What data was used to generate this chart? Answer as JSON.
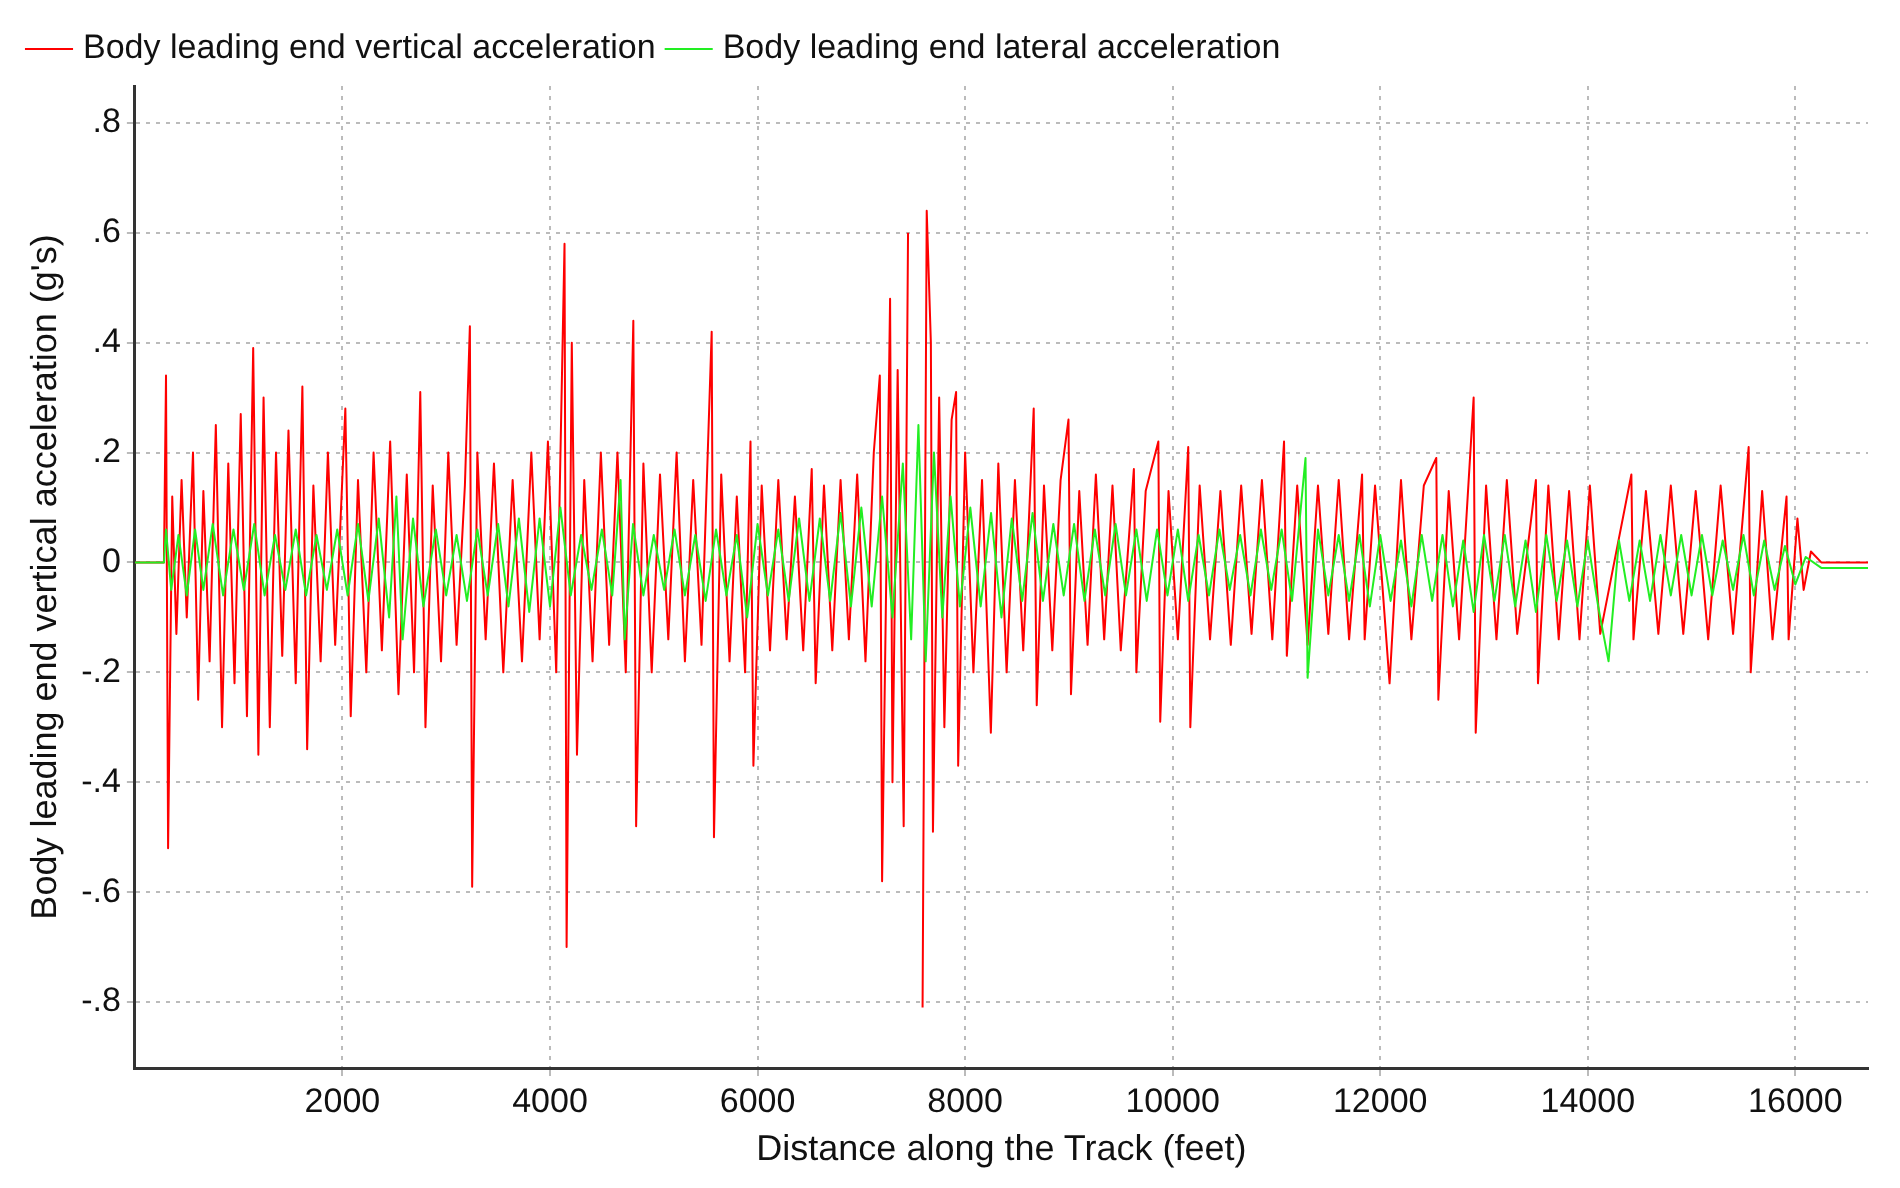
{
  "chart_data": {
    "type": "line",
    "xlabel": "Distance along the Track (feet)",
    "ylabel": "Body leading end vertical acceleration (g's)",
    "xlim": [
      0,
      16700
    ],
    "xticks": [
      2000,
      4000,
      6000,
      8000,
      10000,
      12000,
      14000,
      16000
    ],
    "ylim": [
      -0.92,
      0.867
    ],
    "yticks": [
      {
        "value": 0.8,
        "label": ".8"
      },
      {
        "value": 0.6,
        "label": ".6"
      },
      {
        "value": 0.4,
        "label": ".4"
      },
      {
        "value": 0.2,
        "label": ".2"
      },
      0,
      {
        "value": -0.2,
        "label": "-.2"
      },
      {
        "value": -0.4,
        "label": "-.4"
      },
      {
        "value": -0.6,
        "label": "-.6"
      },
      {
        "value": -0.8,
        "label": "-.8"
      }
    ],
    "grid": true,
    "legend": "top left",
    "marker": "none",
    "line_style": "solid",
    "series": [
      {
        "name": "Body leading end vertical acceleration",
        "color": "#ff0000",
        "x": [
          0,
          280,
          300,
          320,
          360,
          400,
          450,
          500,
          560,
          610,
          660,
          720,
          780,
          840,
          900,
          960,
          1020,
          1080,
          1140,
          1190,
          1240,
          1300,
          1360,
          1420,
          1480,
          1550,
          1614,
          1660,
          1720,
          1790,
          1860,
          1930,
          2028,
          2080,
          2150,
          2230,
          2300,
          2380,
          2460,
          2540,
          2620,
          2690,
          2750,
          2800,
          2870,
          2950,
          3020,
          3100,
          3180,
          3228,
          3250,
          3300,
          3380,
          3460,
          3550,
          3640,
          3730,
          3820,
          3900,
          3980,
          4060,
          4140,
          4160,
          4210,
          4260,
          4330,
          4410,
          4490,
          4570,
          4650,
          4730,
          4803,
          4830,
          4900,
          4980,
          5060,
          5140,
          5220,
          5300,
          5380,
          5460,
          5558,
          5580,
          5650,
          5730,
          5800,
          5880,
          5932,
          5960,
          6040,
          6120,
          6200,
          6280,
          6360,
          6440,
          6522,
          6560,
          6640,
          6720,
          6800,
          6880,
          6960,
          7040,
          7120,
          7178,
          7200,
          7277,
          7300,
          7350,
          7408,
          7450,
          7506,
          7530,
          7572,
          7590,
          7630,
          7670,
          7690,
          7750,
          7800,
          7870,
          7913,
          7933,
          8000,
          8080,
          8163,
          8248,
          8320,
          8400,
          8480,
          8560,
          8661,
          8690,
          8760,
          8840,
          8920,
          8996,
          9020,
          9100,
          9180,
          9260,
          9340,
          9420,
          9500,
          9626,
          9650,
          9740,
          9862,
          9880,
          9960,
          10050,
          10150,
          10170,
          10260,
          10360,
          10460,
          10560,
          10660,
          10760,
          10860,
          10960,
          11073,
          11100,
          11200,
          11300,
          11400,
          11500,
          11600,
          11700,
          11825,
          11850,
          11950,
          12090,
          12200,
          12300,
          12420,
          12540,
          12560,
          12660,
          12760,
          12900,
          12920,
          13020,
          13120,
          13220,
          13320,
          13500,
          13520,
          13620,
          13720,
          13820,
          13920,
          14020,
          14120,
          14420,
          14440,
          14560,
          14680,
          14800,
          14920,
          15040,
          15160,
          15280,
          15400,
          15550,
          15570,
          15680,
          15780,
          15915,
          15935,
          16020,
          16080,
          16150,
          16250,
          16700
        ],
        "values": [
          0,
          0,
          0.34,
          -0.52,
          0.12,
          -0.13,
          0.15,
          -0.1,
          0.2,
          -0.25,
          0.13,
          -0.18,
          0.25,
          -0.3,
          0.18,
          -0.22,
          0.27,
          -0.28,
          0.39,
          -0.35,
          0.3,
          -0.3,
          0.2,
          -0.17,
          0.24,
          -0.22,
          0.32,
          -0.34,
          0.14,
          -0.18,
          0.2,
          -0.15,
          0.28,
          -0.28,
          0.15,
          -0.2,
          0.2,
          -0.16,
          0.22,
          -0.24,
          0.16,
          -0.2,
          0.31,
          -0.3,
          0.14,
          -0.18,
          0.2,
          -0.15,
          0.14,
          0.43,
          -0.59,
          0.2,
          -0.14,
          0.18,
          -0.2,
          0.15,
          -0.18,
          0.2,
          -0.14,
          0.22,
          -0.2,
          0.58,
          -0.7,
          0.4,
          -0.35,
          0.15,
          -0.18,
          0.2,
          -0.15,
          0.2,
          -0.2,
          0.44,
          -0.48,
          0.18,
          -0.2,
          0.16,
          -0.14,
          0.2,
          -0.18,
          0.15,
          -0.15,
          0.42,
          -0.5,
          0.16,
          -0.18,
          0.12,
          -0.2,
          0.22,
          -0.37,
          0.14,
          -0.16,
          0.15,
          -0.14,
          0.12,
          -0.16,
          0.17,
          -0.22,
          0.14,
          -0.16,
          0.15,
          -0.14,
          0.16,
          -0.18,
          0.2,
          0.34,
          -0.58,
          0.48,
          -0.4,
          0.35,
          -0.48,
          0.6,
          null,
          null,
          null,
          -0.81,
          0.64,
          0.4,
          -0.49,
          0.3,
          -0.3,
          0.26,
          0.31,
          -0.37,
          0.2,
          -0.2,
          0.15,
          -0.31,
          0.18,
          -0.2,
          0.15,
          -0.16,
          0.28,
          -0.26,
          0.14,
          -0.16,
          0.15,
          0.26,
          -0.24,
          0.13,
          -0.15,
          0.16,
          -0.14,
          0.14,
          -0.16,
          0.17,
          -0.2,
          0.13,
          0.22,
          -0.29,
          0.13,
          -0.14,
          0.21,
          -0.3,
          0.14,
          -0.14,
          0.13,
          -0.15,
          0.14,
          -0.13,
          0.15,
          -0.14,
          0.22,
          -0.17,
          0.14,
          -0.15,
          0.14,
          -0.13,
          0.15,
          -0.14,
          0.16,
          -0.14,
          0.14,
          -0.22,
          0.15,
          -0.14,
          0.14,
          0.19,
          -0.25,
          0.13,
          -0.14,
          0.3,
          -0.31,
          0.14,
          -0.14,
          0.15,
          -0.13,
          0.15,
          -0.22,
          0.14,
          -0.14,
          0.13,
          -0.14,
          0.14,
          -0.13,
          0.16,
          -0.14,
          0.13,
          -0.13,
          0.14,
          -0.13,
          0.13,
          -0.14,
          0.14,
          -0.13,
          0.21,
          -0.2,
          0.13,
          -0.14,
          0.12,
          -0.14,
          0.08,
          -0.05,
          0.02,
          0,
          0
        ]
      },
      {
        "name": "Body leading end lateral acceleration",
        "color": "#22ee22",
        "x": [
          0,
          280,
          300,
          350,
          420,
          500,
          580,
          660,
          750,
          850,
          950,
          1050,
          1150,
          1250,
          1350,
          1450,
          1550,
          1650,
          1750,
          1850,
          1950,
          2050,
          2150,
          2250,
          2350,
          2450,
          2520,
          2580,
          2680,
          2780,
          2900,
          3000,
          3100,
          3200,
          3300,
          3400,
          3500,
          3600,
          3700,
          3800,
          3900,
          4000,
          4100,
          4200,
          4300,
          4400,
          4500,
          4600,
          4680,
          4720,
          4800,
          4900,
          5000,
          5100,
          5200,
          5300,
          5400,
          5500,
          5600,
          5700,
          5800,
          5900,
          6000,
          6100,
          6200,
          6300,
          6400,
          6500,
          6600,
          6700,
          6800,
          6900,
          7000,
          7100,
          7200,
          7300,
          7400,
          7480,
          7550,
          7620,
          7700,
          7780,
          7860,
          7950,
          8050,
          8150,
          8250,
          8350,
          8450,
          8550,
          8650,
          8750,
          8850,
          8950,
          9050,
          9150,
          9250,
          9350,
          9450,
          9550,
          9650,
          9750,
          9850,
          9950,
          10050,
          10150,
          10250,
          10350,
          10450,
          10550,
          10650,
          10750,
          10850,
          10950,
          11050,
          11150,
          11280,
          11300,
          11400,
          11500,
          11600,
          11700,
          11800,
          11900,
          12000,
          12100,
          12200,
          12300,
          12400,
          12500,
          12600,
          12700,
          12800,
          12900,
          13000,
          13100,
          13200,
          13300,
          13400,
          13500,
          13600,
          13700,
          13800,
          13900,
          14000,
          14100,
          14200,
          14300,
          14400,
          14500,
          14600,
          14700,
          14800,
          14900,
          15000,
          15100,
          15200,
          15300,
          15400,
          15500,
          15600,
          15700,
          15800,
          15900,
          16000,
          16100,
          16250,
          16700
        ],
        "values": [
          0,
          0,
          0.06,
          -0.05,
          0.05,
          -0.06,
          0.06,
          -0.05,
          0.07,
          -0.06,
          0.06,
          -0.05,
          0.07,
          -0.06,
          0.05,
          -0.05,
          0.06,
          -0.06,
          0.05,
          -0.05,
          0.06,
          -0.06,
          0.07,
          -0.07,
          0.08,
          -0.1,
          0.12,
          -0.14,
          0.08,
          -0.08,
          0.06,
          -0.06,
          0.05,
          -0.07,
          0.06,
          -0.06,
          0.07,
          -0.08,
          0.08,
          -0.09,
          0.08,
          -0.08,
          0.1,
          -0.06,
          0.05,
          -0.05,
          0.06,
          -0.06,
          0.15,
          -0.14,
          0.07,
          -0.06,
          0.05,
          -0.05,
          0.06,
          -0.06,
          0.05,
          -0.07,
          0.06,
          -0.06,
          0.05,
          -0.1,
          0.07,
          -0.06,
          0.06,
          -0.07,
          0.08,
          -0.07,
          0.08,
          -0.07,
          0.09,
          -0.08,
          0.1,
          -0.08,
          0.12,
          -0.1,
          0.18,
          -0.14,
          0.25,
          -0.18,
          0.2,
          -0.1,
          0.12,
          -0.08,
          0.1,
          -0.08,
          0.09,
          -0.1,
          0.08,
          -0.07,
          0.09,
          -0.07,
          0.07,
          -0.06,
          0.07,
          -0.07,
          0.06,
          -0.06,
          0.07,
          -0.06,
          0.06,
          -0.07,
          0.06,
          -0.06,
          0.06,
          -0.07,
          0.05,
          -0.06,
          0.06,
          -0.05,
          0.05,
          -0.06,
          0.06,
          -0.05,
          0.06,
          -0.07,
          0.19,
          -0.21,
          0.06,
          -0.06,
          0.05,
          -0.07,
          0.05,
          -0.08,
          0.05,
          -0.07,
          0.04,
          -0.08,
          0.05,
          -0.07,
          0.05,
          -0.08,
          0.04,
          -0.09,
          0.05,
          -0.07,
          0.05,
          -0.08,
          0.04,
          -0.09,
          0.05,
          -0.07,
          0.04,
          -0.08,
          0.04,
          -0.08,
          -0.18,
          0.04,
          -0.07,
          0.04,
          -0.07,
          0.05,
          -0.06,
          0.05,
          -0.06,
          0.05,
          -0.06,
          0.04,
          -0.05,
          0.05,
          -0.06,
          0.04,
          -0.05,
          0.03,
          -0.04,
          0.01,
          -0.01,
          -0.01
        ]
      }
    ]
  }
}
